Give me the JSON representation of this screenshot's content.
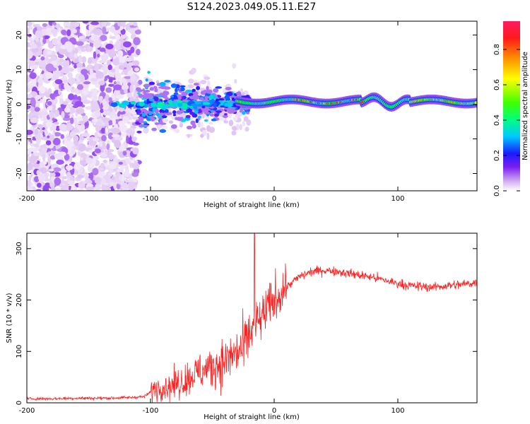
{
  "title": "S124.2023.049.05.11.E27",
  "chart_data": [
    {
      "type": "heatmap",
      "xlabel": "Height of straight line (km)",
      "ylabel": "Frequency (Hz)",
      "xlim": [
        -200,
        164
      ],
      "ylim": [
        -25,
        24
      ],
      "xticks": [
        -200,
        -100,
        0,
        100
      ],
      "xtick_labels": [
        "-200",
        "-100",
        "0",
        "100"
      ],
      "yticks": [
        -20,
        -10,
        0,
        10,
        20
      ],
      "ytick_labels": [
        "-20",
        "-10",
        "0",
        "10",
        "20"
      ],
      "colorbar": {
        "label": "Normalized spectral amplitude",
        "range": [
          0,
          0.96
        ],
        "ticks": [
          0,
          0.2,
          0.4,
          0.6,
          0.8
        ],
        "tick_labels": [
          "0.0",
          "0.2",
          "0.4",
          "0.6",
          "0.8"
        ],
        "colormap": [
          "#ffffff",
          "#d8b8f0",
          "#7a1ff0",
          "#1a1aff",
          "#00c8ff",
          "#00ff80",
          "#40ff00",
          "#ffff00",
          "#ff9000",
          "#ff1a1a",
          "#ff1a60"
        ]
      },
      "features": [
        {
          "name": "scatter noise region",
          "x_range": [
            -200,
            -110
          ],
          "freq_range": [
            -25,
            24
          ],
          "amplitude": 0.12
        },
        {
          "name": "transition region",
          "x_range": [
            -110,
            -20
          ],
          "freq_center": 0,
          "amplitude": 0.3
        },
        {
          "name": "carrier line",
          "x_range": [
            -30,
            164
          ],
          "freq_center": 0.8,
          "amplitude": 0.95
        }
      ]
    },
    {
      "type": "line",
      "xlabel": "Height of straight line (km)",
      "ylabel": "SNR (10 * v/v)",
      "xlim": [
        -200,
        164
      ],
      "ylim": [
        0,
        330
      ],
      "xticks": [
        -200,
        -100,
        0,
        100
      ],
      "xtick_labels": [
        "-200",
        "-100",
        "0",
        "100"
      ],
      "yticks": [
        0,
        100,
        200,
        300
      ],
      "ytick_labels": [
        "0",
        "100",
        "200",
        "300"
      ],
      "color": "#ff2020",
      "series": [
        {
          "name": "SNR",
          "x": [
            -200,
            -180,
            -160,
            -140,
            -120,
            -105,
            -95,
            -85,
            -75,
            -65,
            -55,
            -45,
            -35,
            -25,
            -20,
            -15,
            -10,
            -5,
            0,
            10,
            20,
            30,
            40,
            50,
            60,
            70,
            80,
            90,
            100,
            110,
            120,
            130,
            140,
            150,
            164
          ],
          "values": [
            8,
            8,
            9,
            9,
            10,
            12,
            30,
            32,
            40,
            55,
            65,
            75,
            90,
            105,
            135,
            150,
            165,
            185,
            200,
            225,
            245,
            255,
            258,
            256,
            252,
            248,
            244,
            238,
            232,
            228,
            226,
            225,
            228,
            230,
            234
          ],
          "spike": {
            "x": -16,
            "value": 330
          }
        }
      ]
    }
  ]
}
